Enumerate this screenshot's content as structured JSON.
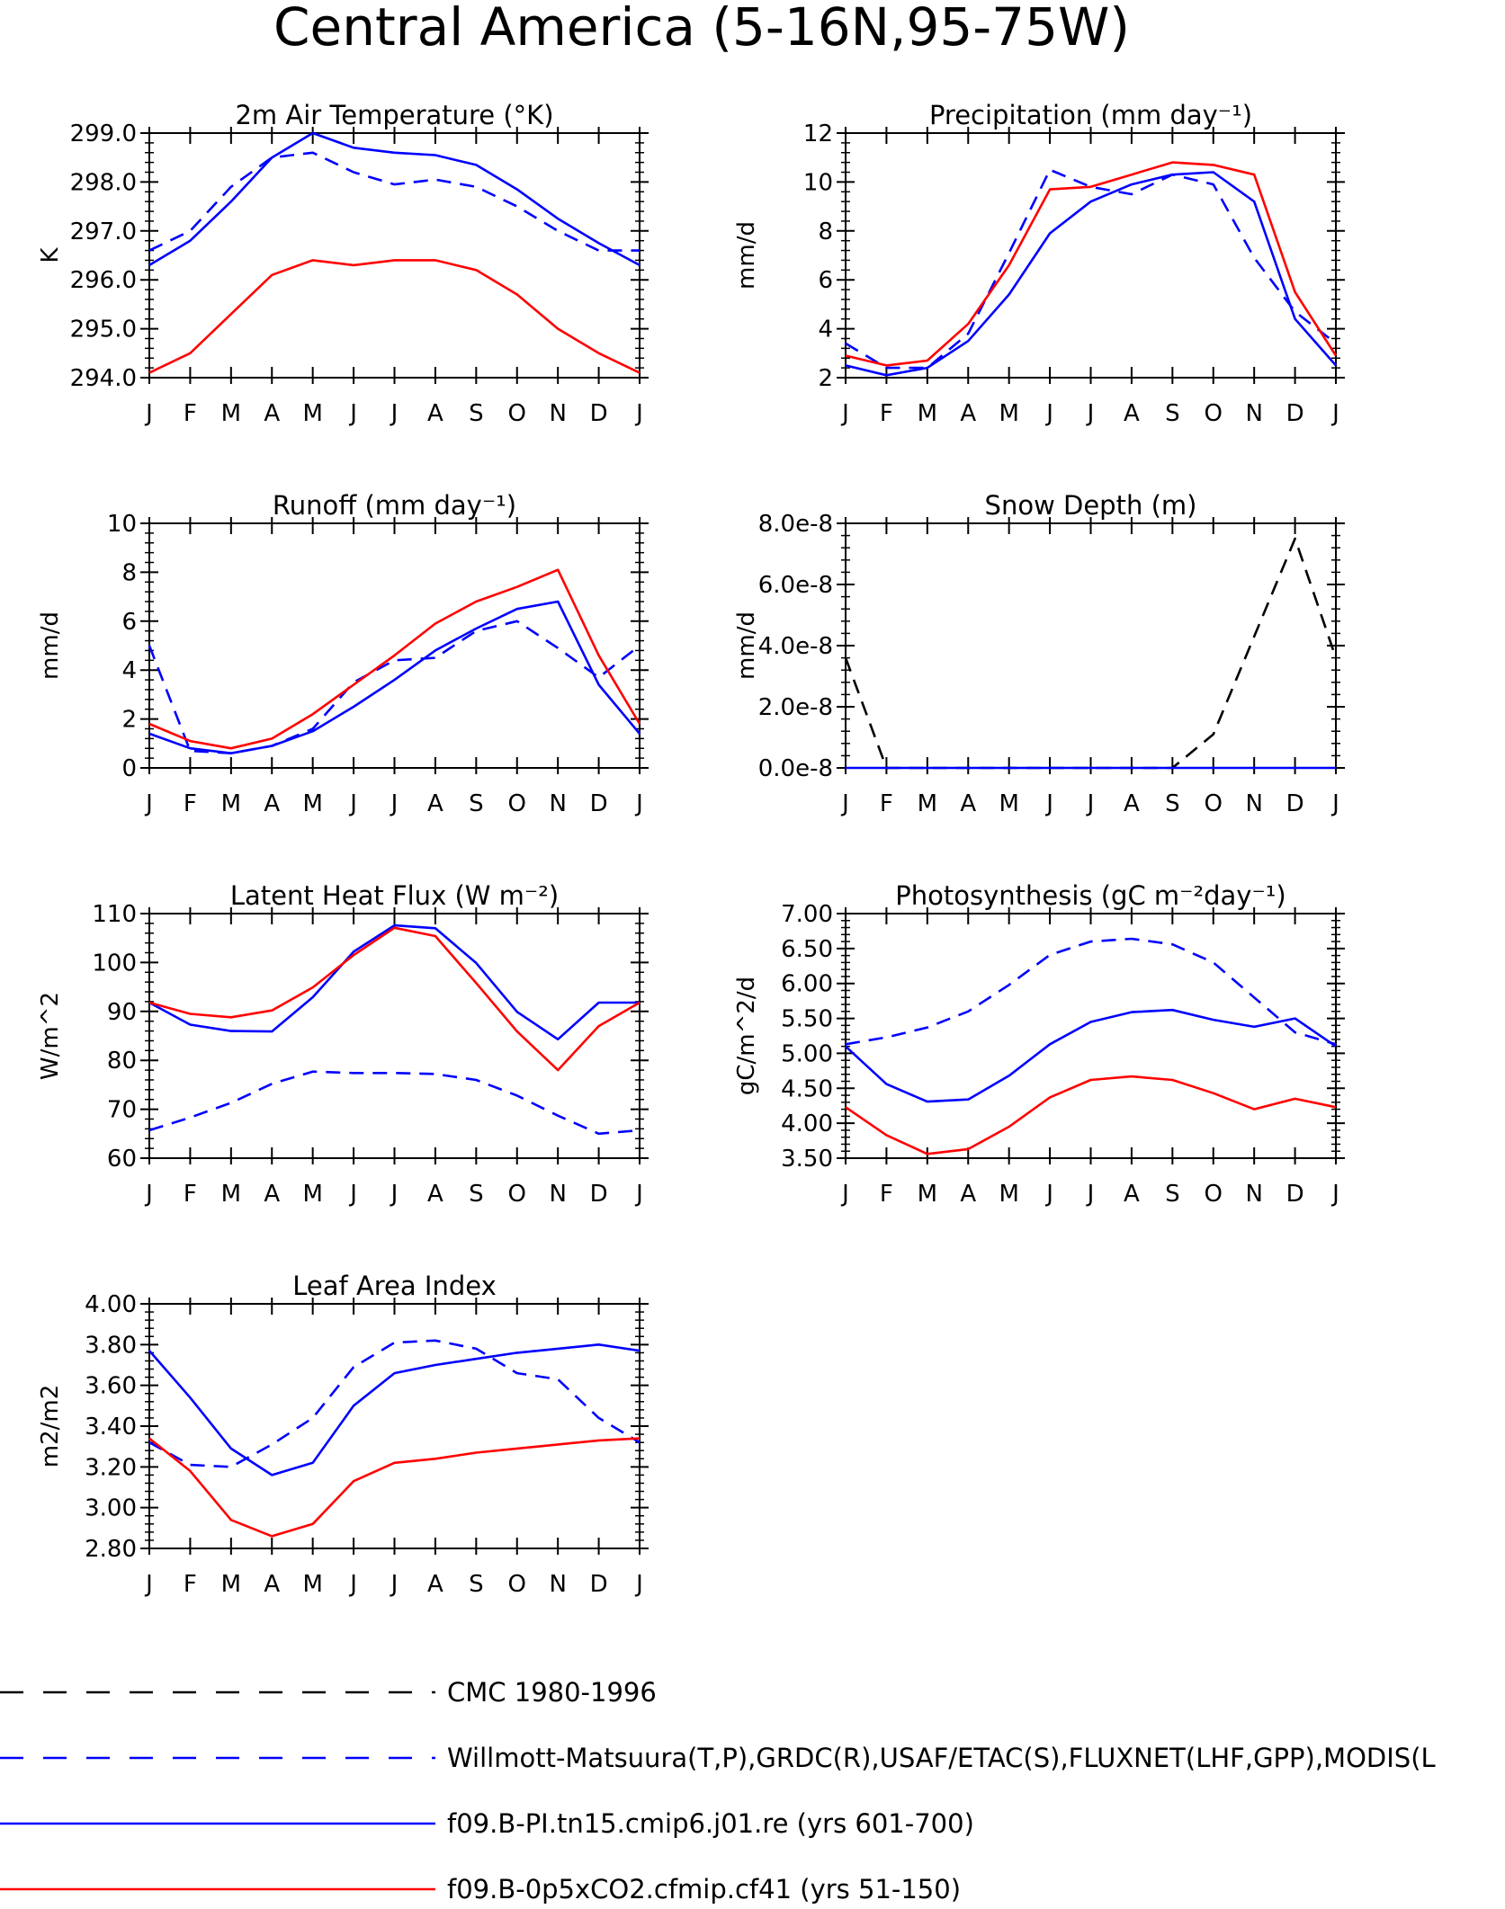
{
  "page_title": "Central America (5-16N,95-75W)",
  "legend": [
    {
      "label": "CMC 1980-1996",
      "color": "#000000",
      "style": "dashed"
    },
    {
      "label": "Willmott-Matsuura(T,P),GRDC(R),USAF/ETAC(S),FLUXNET(LHF,GPP),MODIS(L",
      "color": "#0000ff",
      "style": "dashed"
    },
    {
      "label": "f09.B-PI.tn15.cmip6.j01.re (yrs 601-700)",
      "color": "#0000ff",
      "style": "solid"
    },
    {
      "label": "f09.B-0p5xCO2.cfmip.cf41 (yrs 51-150)",
      "color": "#ff0000",
      "style": "solid"
    }
  ],
  "chart_data": [
    {
      "type": "line",
      "title": "2m Air Temperature (°K)",
      "ylabel": "K",
      "categories": [
        "J",
        "F",
        "M",
        "A",
        "M",
        "J",
        "J",
        "A",
        "S",
        "O",
        "N",
        "D",
        "J"
      ],
      "ylim": [
        294.0,
        299.0
      ],
      "yticks": [
        "294.0",
        "295.0",
        "296.0",
        "297.0",
        "298.0",
        "299.0"
      ],
      "ytick_values": [
        294,
        295,
        296,
        297,
        298,
        299
      ],
      "series": [
        {
          "color": "#0000ff",
          "style": "dashed",
          "values": [
            296.6,
            297.0,
            297.9,
            298.5,
            298.6,
            298.2,
            297.95,
            298.05,
            297.9,
            297.5,
            297.0,
            296.6,
            296.6
          ]
        },
        {
          "color": "#0000ff",
          "style": "solid",
          "values": [
            296.3,
            296.8,
            297.6,
            298.5,
            299.0,
            298.7,
            298.6,
            298.55,
            298.35,
            297.85,
            297.25,
            296.75,
            296.3
          ]
        },
        {
          "color": "#ff0000",
          "style": "solid",
          "values": [
            294.1,
            294.5,
            295.3,
            296.1,
            296.4,
            296.3,
            296.4,
            296.4,
            296.2,
            295.7,
            295.0,
            294.5,
            294.1
          ]
        }
      ]
    },
    {
      "type": "line",
      "title": "Precipitation (mm day⁻¹)",
      "ylabel": "mm/d",
      "categories": [
        "J",
        "F",
        "M",
        "A",
        "M",
        "J",
        "J",
        "A",
        "S",
        "O",
        "N",
        "D",
        "J"
      ],
      "ylim": [
        2,
        12
      ],
      "yticks": [
        "2",
        "4",
        "6",
        "8",
        "10",
        "12"
      ],
      "ytick_values": [
        2,
        4,
        6,
        8,
        10,
        12
      ],
      "series": [
        {
          "color": "#0000ff",
          "style": "dashed",
          "values": [
            3.4,
            2.4,
            2.4,
            3.8,
            7.1,
            10.5,
            9.8,
            9.5,
            10.3,
            9.9,
            6.9,
            4.7,
            3.4
          ]
        },
        {
          "color": "#0000ff",
          "style": "solid",
          "values": [
            2.5,
            2.1,
            2.4,
            3.5,
            5.4,
            7.9,
            9.2,
            9.9,
            10.3,
            10.4,
            9.2,
            4.4,
            2.5
          ]
        },
        {
          "color": "#ff0000",
          "style": "solid",
          "values": [
            2.9,
            2.5,
            2.7,
            4.2,
            6.6,
            9.7,
            9.8,
            10.3,
            10.8,
            10.7,
            10.3,
            5.5,
            2.9
          ]
        }
      ]
    },
    {
      "type": "line",
      "title": "Runoff (mm day⁻¹)",
      "ylabel": "mm/d",
      "categories": [
        "J",
        "F",
        "M",
        "A",
        "M",
        "J",
        "J",
        "A",
        "S",
        "O",
        "N",
        "D",
        "J"
      ],
      "ylim": [
        0,
        10
      ],
      "yticks": [
        "0",
        "2",
        "4",
        "6",
        "8",
        "10"
      ],
      "ytick_values": [
        0,
        2,
        4,
        6,
        8,
        10
      ],
      "series": [
        {
          "color": "#0000ff",
          "style": "dashed",
          "values": [
            5.0,
            0.7,
            0.6,
            0.9,
            1.6,
            3.5,
            4.4,
            4.5,
            5.6,
            6.0,
            4.9,
            3.7,
            5.0
          ]
        },
        {
          "color": "#0000ff",
          "style": "solid",
          "values": [
            1.4,
            0.8,
            0.6,
            0.9,
            1.5,
            2.5,
            3.6,
            4.8,
            5.7,
            6.5,
            6.8,
            3.4,
            1.4
          ]
        },
        {
          "color": "#ff0000",
          "style": "solid",
          "values": [
            1.8,
            1.1,
            0.8,
            1.2,
            2.2,
            3.4,
            4.6,
            5.9,
            6.8,
            7.4,
            8.1,
            4.6,
            1.8
          ]
        }
      ]
    },
    {
      "type": "line",
      "title": "Snow Depth (m)",
      "ylabel": "mm/d",
      "categories": [
        "J",
        "F",
        "M",
        "A",
        "M",
        "J",
        "J",
        "A",
        "S",
        "O",
        "N",
        "D",
        "J"
      ],
      "ylim": [
        0,
        8e-08
      ],
      "yticks": [
        "0.0e-8",
        "2.0e-8",
        "4.0e-8",
        "6.0e-8",
        "8.0e-8"
      ],
      "ytick_values": [
        0,
        2e-08,
        4e-08,
        6e-08,
        8e-08
      ],
      "series": [
        {
          "color": "#000000",
          "style": "dashed",
          "values": [
            3.6e-08,
            0,
            0,
            0,
            0,
            0,
            0,
            0,
            0,
            1.1e-08,
            4.3e-08,
            7.5e-08,
            3.6e-08
          ]
        },
        {
          "color": "#0000ff",
          "style": "solid",
          "values": [
            0,
            0,
            0,
            0,
            0,
            0,
            0,
            0,
            0,
            0,
            0,
            0,
            0
          ]
        }
      ]
    },
    {
      "type": "line",
      "title": "Latent Heat Flux (W m⁻²)",
      "ylabel": "W/m^2",
      "categories": [
        "J",
        "F",
        "M",
        "A",
        "M",
        "J",
        "J",
        "A",
        "S",
        "O",
        "N",
        "D",
        "J"
      ],
      "ylim": [
        60,
        110
      ],
      "yticks": [
        "60",
        "70",
        "80",
        "90",
        "100",
        "110"
      ],
      "ytick_values": [
        60,
        70,
        80,
        90,
        100,
        110
      ],
      "series": [
        {
          "color": "#0000ff",
          "style": "dashed",
          "values": [
            65.7,
            68.3,
            71.3,
            75.2,
            77.7,
            77.4,
            77.4,
            77.2,
            76.0,
            72.8,
            68.7,
            65.0,
            65.7
          ]
        },
        {
          "color": "#0000ff",
          "style": "solid",
          "values": [
            91.8,
            87.3,
            86.0,
            85.9,
            92.9,
            102.2,
            107.6,
            107.0,
            99.9,
            89.9,
            84.3,
            91.8,
            91.8
          ]
        },
        {
          "color": "#ff0000",
          "style": "solid",
          "values": [
            91.8,
            89.5,
            88.8,
            90.2,
            94.9,
            101.5,
            107.1,
            105.4,
            95.8,
            85.9,
            78.0,
            87.0,
            91.8
          ]
        }
      ]
    },
    {
      "type": "line",
      "title": "Photosynthesis (gC m⁻²day⁻¹)",
      "ylabel": "gC/m^2/d",
      "categories": [
        "J",
        "F",
        "M",
        "A",
        "M",
        "J",
        "J",
        "A",
        "S",
        "O",
        "N",
        "D",
        "J"
      ],
      "ylim": [
        3.5,
        7.0
      ],
      "yticks": [
        "3.50",
        "4.00",
        "4.50",
        "5.00",
        "5.50",
        "6.00",
        "6.50",
        "7.00"
      ],
      "ytick_values": [
        3.5,
        4.0,
        4.5,
        5.0,
        5.5,
        6.0,
        6.5,
        7.0
      ],
      "series": [
        {
          "color": "#0000ff",
          "style": "dashed",
          "values": [
            5.13,
            5.23,
            5.37,
            5.6,
            5.98,
            6.41,
            6.6,
            6.64,
            6.56,
            6.3,
            5.8,
            5.3,
            5.13
          ]
        },
        {
          "color": "#0000ff",
          "style": "solid",
          "values": [
            5.1,
            4.56,
            4.31,
            4.34,
            4.68,
            5.13,
            5.45,
            5.59,
            5.62,
            5.48,
            5.38,
            5.5,
            5.1
          ]
        },
        {
          "color": "#ff0000",
          "style": "solid",
          "values": [
            4.23,
            3.83,
            3.56,
            3.63,
            3.95,
            4.37,
            4.62,
            4.67,
            4.62,
            4.43,
            4.2,
            4.35,
            4.23
          ]
        }
      ]
    },
    {
      "type": "line",
      "title": "Leaf Area Index",
      "ylabel": "m2/m2",
      "categories": [
        "J",
        "F",
        "M",
        "A",
        "M",
        "J",
        "J",
        "A",
        "S",
        "O",
        "N",
        "D",
        "J"
      ],
      "ylim": [
        2.8,
        4.0
      ],
      "yticks": [
        "2.80",
        "3.00",
        "3.20",
        "3.40",
        "3.60",
        "3.80",
        "4.00"
      ],
      "ytick_values": [
        2.8,
        3.0,
        3.2,
        3.4,
        3.6,
        3.8,
        4.0
      ],
      "series": [
        {
          "color": "#0000ff",
          "style": "dashed",
          "values": [
            3.32,
            3.21,
            3.2,
            3.31,
            3.44,
            3.69,
            3.81,
            3.82,
            3.78,
            3.66,
            3.63,
            3.44,
            3.32
          ]
        },
        {
          "color": "#0000ff",
          "style": "solid",
          "values": [
            3.77,
            3.54,
            3.29,
            3.16,
            3.22,
            3.5,
            3.66,
            3.7,
            3.73,
            3.76,
            3.78,
            3.8,
            3.77
          ]
        },
        {
          "color": "#ff0000",
          "style": "solid",
          "values": [
            3.34,
            3.18,
            2.94,
            2.86,
            2.92,
            3.13,
            3.22,
            3.24,
            3.27,
            3.29,
            3.31,
            3.33,
            3.34
          ]
        }
      ]
    }
  ]
}
